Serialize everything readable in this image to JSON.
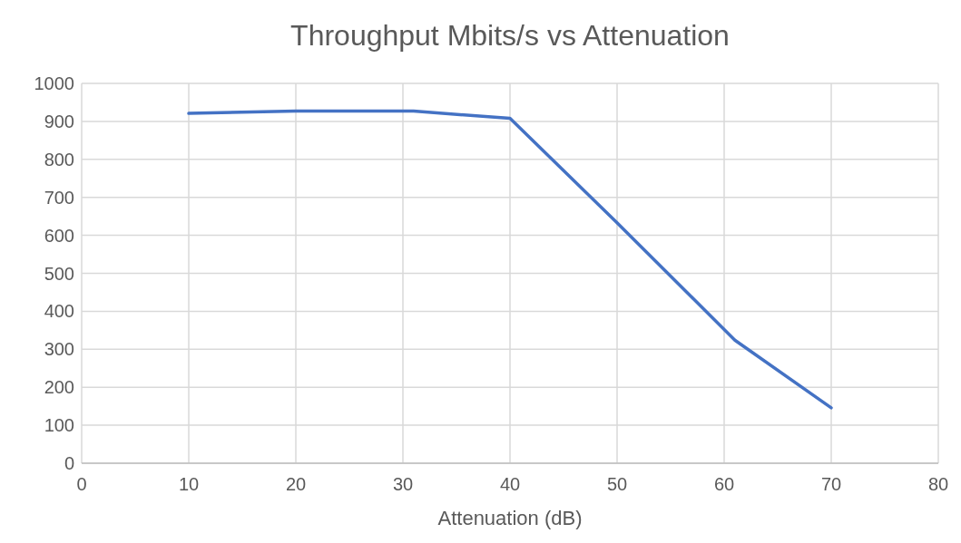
{
  "chart_data": {
    "type": "line",
    "title": "Throughput Mbits/s vs Attenuation",
    "xlabel": "Attenuation (dB)",
    "x": [
      10,
      20,
      31,
      40,
      50,
      61,
      70
    ],
    "series": [
      {
        "color": "#4472c4",
        "values": [
          921,
          927,
          927,
          908,
          633,
          324,
          146
        ]
      }
    ],
    "xlim": [
      0,
      80
    ],
    "xticks": [
      0,
      10,
      20,
      30,
      40,
      50,
      60,
      70,
      80
    ],
    "ylim": [
      0,
      1000
    ],
    "yticks": [
      0,
      100,
      200,
      300,
      400,
      500,
      600,
      700,
      800,
      900,
      1000
    ],
    "grid": true,
    "marker": "none",
    "line_style": "solid"
  }
}
